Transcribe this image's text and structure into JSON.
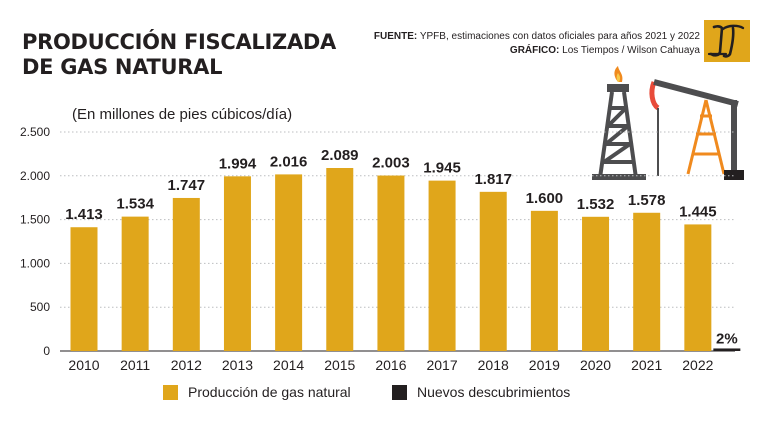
{
  "title_lines": [
    "PRODUCCIÓN FISCALIZADA",
    "DE GAS NATURAL"
  ],
  "credits": {
    "source_label": "FUENTE:",
    "source_text": " YPFB, estimaciones con datos oficiales para años 2021 y 2022",
    "graphic_label": "GRÁFICO:",
    "graphic_text": " Los Tiempos / Wilson Cahuaya"
  },
  "logo": {
    "icon": "los-tiempos-logo-icon",
    "color": "#e0a61b"
  },
  "illustration": {
    "icon": "oil-rig-and-pumpjack-icon"
  },
  "chart_data": {
    "type": "bar",
    "ylabel": "(En millones de pies cúbicos/día)",
    "ylim": [
      0,
      2500
    ],
    "yticks": [
      0,
      500,
      1000,
      1500,
      2000,
      2500
    ],
    "ytick_labels": [
      "0",
      "500",
      "1.000",
      "1.500",
      "2.000",
      "2.500"
    ],
    "grid": true,
    "categories": [
      "2010",
      "2011",
      "2012",
      "2013",
      "2014",
      "2015",
      "2016",
      "2017",
      "2018",
      "2019",
      "2020",
      "2021",
      "2022"
    ],
    "series": [
      {
        "name": "Producción de gas natural",
        "color": "#e0a61b",
        "values": [
          1413,
          1534,
          1747,
          1994,
          2016,
          2089,
          2003,
          1945,
          1817,
          1600,
          1532,
          1578,
          1445
        ],
        "labels": [
          "1.413",
          "1.534",
          "1.747",
          "1.994",
          "2.016",
          "2.089",
          "2.003",
          "1.945",
          "1.817",
          "1.600",
          "1.532",
          "1.578",
          "1.445"
        ]
      },
      {
        "name": "Nuevos descubrimientos",
        "color": "#231f20",
        "category": "2022",
        "value": 29,
        "label": "2%"
      }
    ],
    "legend_position": "bottom"
  }
}
